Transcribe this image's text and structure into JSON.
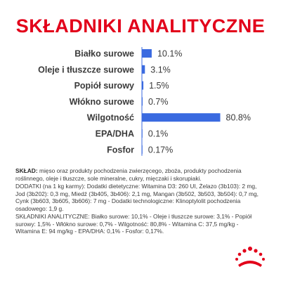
{
  "colors": {
    "brand_red": "#e2001a",
    "bar_blue": "#3a6ae0",
    "axis_line": "#3a6ae0",
    "label_text": "#3a3a3a"
  },
  "title": "SKŁADNIKI ANALITYCZNE",
  "chart_data": {
    "type": "bar",
    "orientation": "horizontal",
    "categories": [
      "Białko surowe",
      "Oleje i tłuszcze surowe",
      "Popiół surowy",
      "Włókno surowe",
      "Wilgotność",
      "EPA/DHA",
      "Fosfor"
    ],
    "values": [
      10.1,
      3.1,
      1.5,
      0.7,
      80.8,
      0.1,
      0.17
    ],
    "value_labels": [
      "10.1%",
      "3.1%",
      "1.5%",
      "0.7%",
      "80.8%",
      "0.1%",
      "0.17%"
    ],
    "unit": "%",
    "xlim": [
      0,
      100
    ],
    "grid": false,
    "legend": "none"
  },
  "composition": {
    "label": "SKŁAD:",
    "text": "mięso oraz produkty pochodzenia zwierzęcego, zboża, produkty pochodzenia roślinnego, oleje i tłuszcze, sole mineralne, cukry, mięczaki i skorupiaki.",
    "additives": "DODATKI (na 1 kg karmy): Dodatki dietetyczne: Witamina D3: 260 UI, Żelazo (3b103): 2 mg, Jod (3b202): 0,3 mg, Miedź (3b405, 3b406): 2,1 mg, Mangan (3b502, 3b503, 3b504): 0,7 mg, Cynk (3b603, 3b605, 3b606): 7 mg - Dodatki technologiczne: Klinoptylolit pochodzenia osadowego: 1,9 g.",
    "analytical": "SKŁADNIKI ANALITYCZNE: Białko surowe: 10,1% - Oleje i tłuszcze surowe: 3,1% - Popiół surowy: 1,5% - Włókno surowe: 0,7% - Wilgotność: 80,8% - Witamina C: 37,5 mg/kg - Witamina E: 94 mg/kg - EPA/DHA: 0,1% - Fosfor: 0,17%."
  },
  "logo": {
    "icon": "crown-logo-icon"
  }
}
